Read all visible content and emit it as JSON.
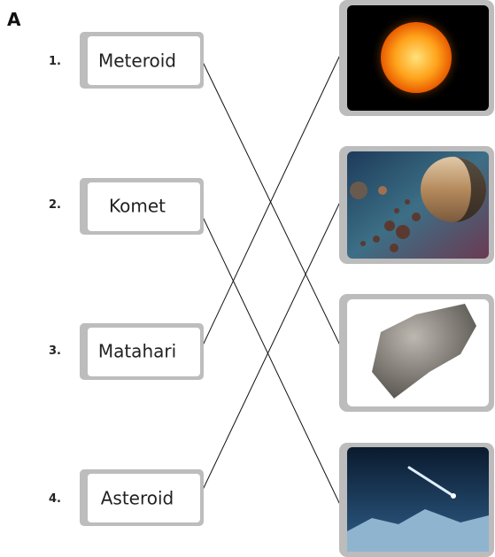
{
  "section": "A",
  "items": [
    {
      "number": "1.",
      "label": "Meteroid"
    },
    {
      "number": "2.",
      "label": "Komet"
    },
    {
      "number": "3.",
      "label": "Matahari"
    },
    {
      "number": "4.",
      "label": "Asteroid"
    }
  ]
}
